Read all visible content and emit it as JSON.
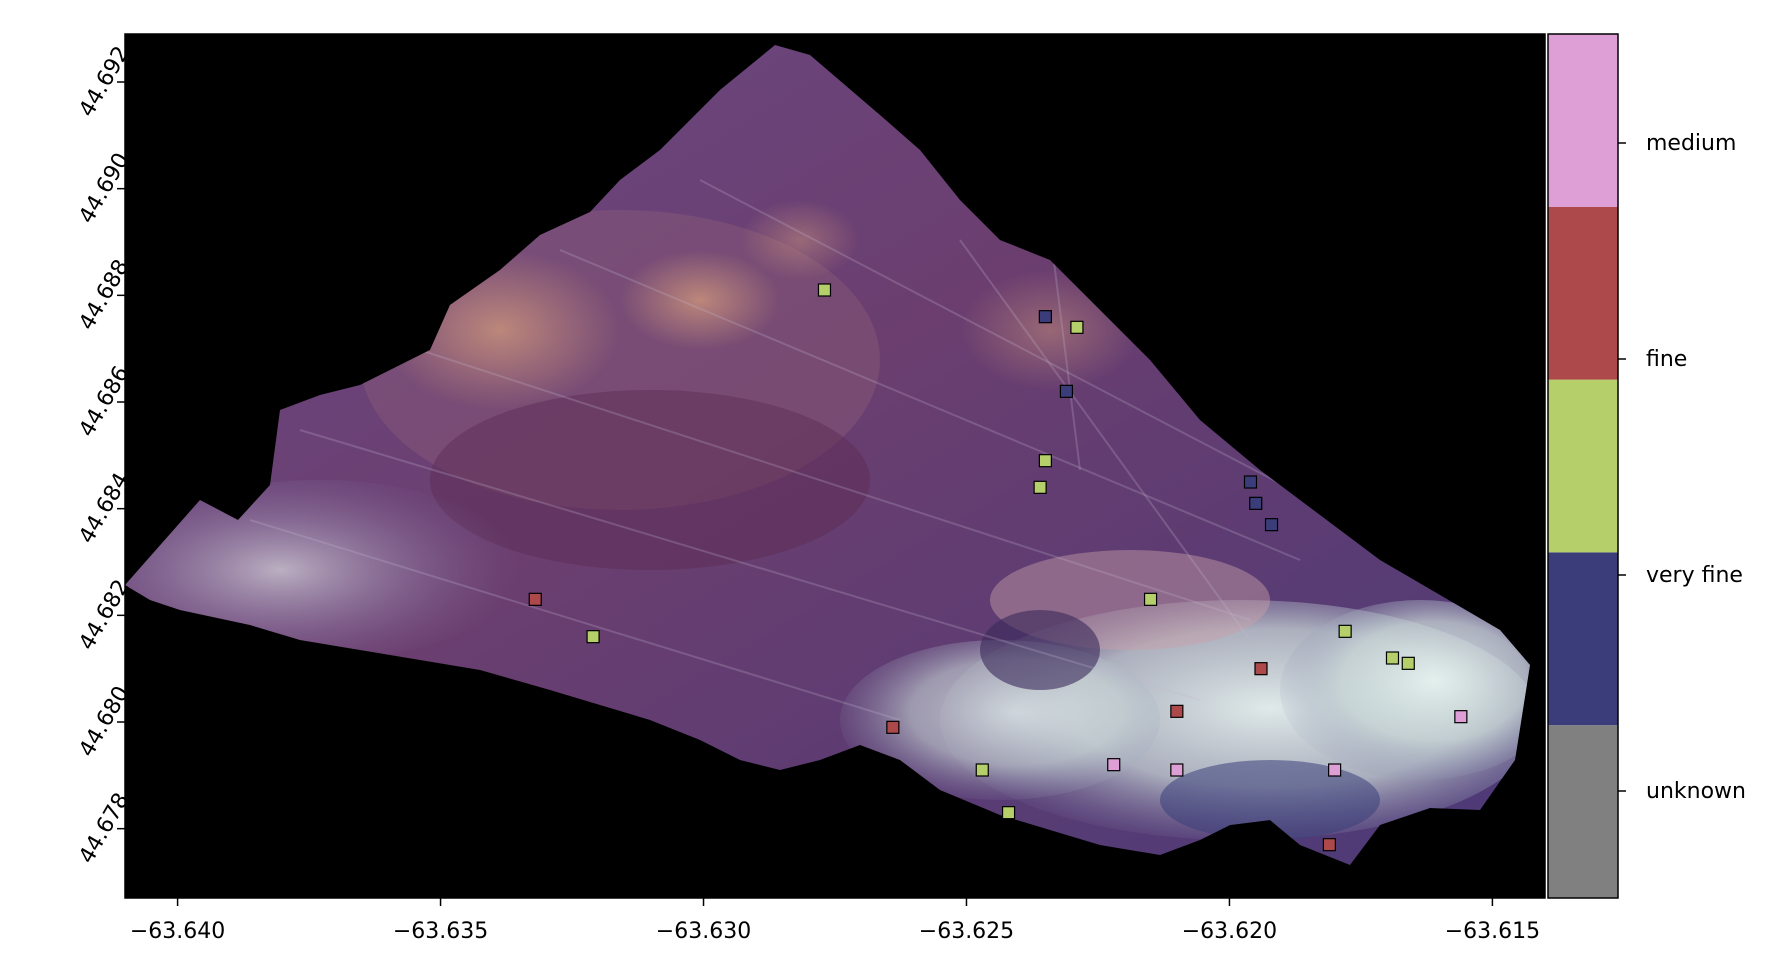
{
  "chart_data": {
    "type": "scatter",
    "background": "false-color aerial mosaic",
    "xlim": [
      -63.641,
      -63.614
    ],
    "ylim": [
      44.6767,
      44.6929
    ],
    "x_ticks": [
      -63.64,
      -63.635,
      -63.63,
      -63.625,
      -63.62,
      -63.615
    ],
    "x_tick_labels": [
      "−63.640",
      "−63.635",
      "−63.630",
      "−63.625",
      "−63.620",
      "−63.615"
    ],
    "y_ticks": [
      44.678,
      44.68,
      44.682,
      44.684,
      44.686,
      44.688,
      44.69,
      44.692
    ],
    "y_tick_labels": [
      "44.678",
      "44.680",
      "44.682",
      "44.684",
      "44.686",
      "44.688",
      "44.690",
      "44.692"
    ],
    "categories": [
      {
        "name": "unknown",
        "color": "#808080"
      },
      {
        "name": "very fine",
        "color": "#3b3d7a"
      },
      {
        "name": "fine",
        "color": "#b24b4b"
      },
      {
        "name": "medium",
        "color": "#df9fd8"
      }
    ],
    "colorbar_segments": [
      "#808080",
      "#3b3d7a",
      "#b5cf6b",
      "#ad494a",
      "#de9ed6"
    ],
    "point_colors": {
      "unknown": "#808080",
      "very_fine": "#3b3d7a",
      "olive": "#b5cf6b",
      "fine": "#ad494a",
      "medium": "#de9ed6"
    },
    "points": [
      {
        "x": -63.6277,
        "y": 44.6881,
        "c": "olive"
      },
      {
        "x": -63.6235,
        "y": 44.6876,
        "c": "very_fine"
      },
      {
        "x": -63.6229,
        "y": 44.6874,
        "c": "olive"
      },
      {
        "x": -63.6231,
        "y": 44.6862,
        "c": "very_fine"
      },
      {
        "x": -63.6235,
        "y": 44.6849,
        "c": "olive"
      },
      {
        "x": -63.6236,
        "y": 44.6844,
        "c": "olive"
      },
      {
        "x": -63.6196,
        "y": 44.6845,
        "c": "very_fine"
      },
      {
        "x": -63.6195,
        "y": 44.6841,
        "c": "very_fine"
      },
      {
        "x": -63.6192,
        "y": 44.6837,
        "c": "very_fine"
      },
      {
        "x": -63.6332,
        "y": 44.6823,
        "c": "fine"
      },
      {
        "x": -63.6321,
        "y": 44.6816,
        "c": "olive"
      },
      {
        "x": -63.6215,
        "y": 44.6823,
        "c": "olive"
      },
      {
        "x": -63.6178,
        "y": 44.6817,
        "c": "olive"
      },
      {
        "x": -63.6194,
        "y": 44.681,
        "c": "fine"
      },
      {
        "x": -63.6169,
        "y": 44.6812,
        "c": "olive"
      },
      {
        "x": -63.6166,
        "y": 44.6811,
        "c": "olive"
      },
      {
        "x": -63.6264,
        "y": 44.6799,
        "c": "fine"
      },
      {
        "x": -63.621,
        "y": 44.6802,
        "c": "fine"
      },
      {
        "x": -63.6156,
        "y": 44.6801,
        "c": "medium"
      },
      {
        "x": -63.6247,
        "y": 44.6791,
        "c": "olive"
      },
      {
        "x": -63.6222,
        "y": 44.6792,
        "c": "medium"
      },
      {
        "x": -63.621,
        "y": 44.6791,
        "c": "medium"
      },
      {
        "x": -63.618,
        "y": 44.6791,
        "c": "medium"
      },
      {
        "x": -63.6242,
        "y": 44.6783,
        "c": "olive"
      },
      {
        "x": -63.6181,
        "y": 44.6777,
        "c": "fine"
      }
    ]
  }
}
